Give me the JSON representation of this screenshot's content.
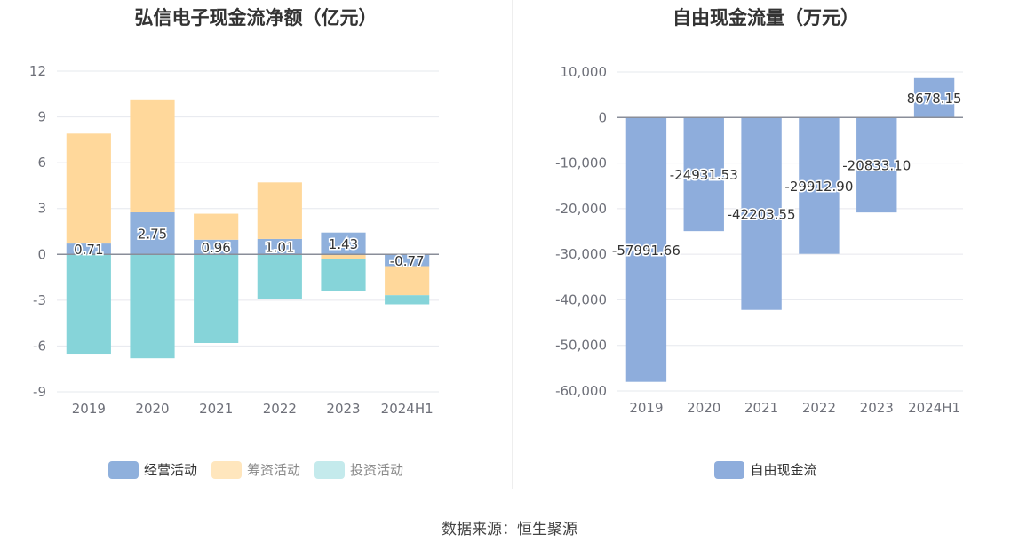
{
  "source": "数据来源：恒生聚源",
  "colors": {
    "operating": "#8fb0dc",
    "financing": "#ffd89b",
    "investing": "#86d4d9",
    "fcf": "#8eaddc",
    "grid": "#e6e8ee",
    "axis": "#8a8e99"
  },
  "chart_data": [
    {
      "type": "bar",
      "stacked": true,
      "title": "弘信电子现金流净额（亿元）",
      "categories": [
        "2019",
        "2020",
        "2021",
        "2022",
        "2023",
        "2024H1"
      ],
      "ylim": [
        -9,
        12
      ],
      "yticks": [
        12,
        9,
        6,
        3,
        0,
        -3,
        -6,
        -9
      ],
      "grid": true,
      "legend_position": "bottom",
      "series": [
        {
          "name": "经营活动",
          "color_key": "operating",
          "values": [
            0.71,
            2.75,
            0.96,
            1.01,
            1.43,
            -0.77
          ],
          "labels": [
            "0.71",
            "2.75",
            "0.96",
            "1.01",
            "1.43",
            "-0.77"
          ]
        },
        {
          "name": "筹资活动",
          "color_key": "financing",
          "values": [
            7.2,
            7.4,
            1.7,
            3.7,
            -0.3,
            -1.9
          ]
        },
        {
          "name": "投资活动",
          "color_key": "investing",
          "values": [
            -6.5,
            -6.8,
            -5.8,
            -2.9,
            -2.1,
            -0.6
          ]
        }
      ]
    },
    {
      "type": "bar",
      "title": "自由现金流量（万元）",
      "categories": [
        "2019",
        "2020",
        "2021",
        "2022",
        "2023",
        "2024H1"
      ],
      "ylim": [
        -60000,
        10000
      ],
      "yticks": [
        10000,
        0,
        -10000,
        -20000,
        -30000,
        -40000,
        -50000,
        -60000
      ],
      "ytick_labels": [
        "10,000",
        "0",
        "-10,000",
        "-20,000",
        "-30,000",
        "-40,000",
        "-50,000",
        "-60,000"
      ],
      "grid": true,
      "legend_position": "bottom",
      "series": [
        {
          "name": "自由现金流",
          "color_key": "fcf",
          "values": [
            -57991.66,
            -24931.53,
            -42203.55,
            -29912.9,
            -20833.1,
            8678.15
          ],
          "labels": [
            "-57991.66",
            "-24931.53",
            "-42203.55",
            "-29912.90",
            "-20833.10",
            "8678.15"
          ]
        }
      ]
    }
  ]
}
